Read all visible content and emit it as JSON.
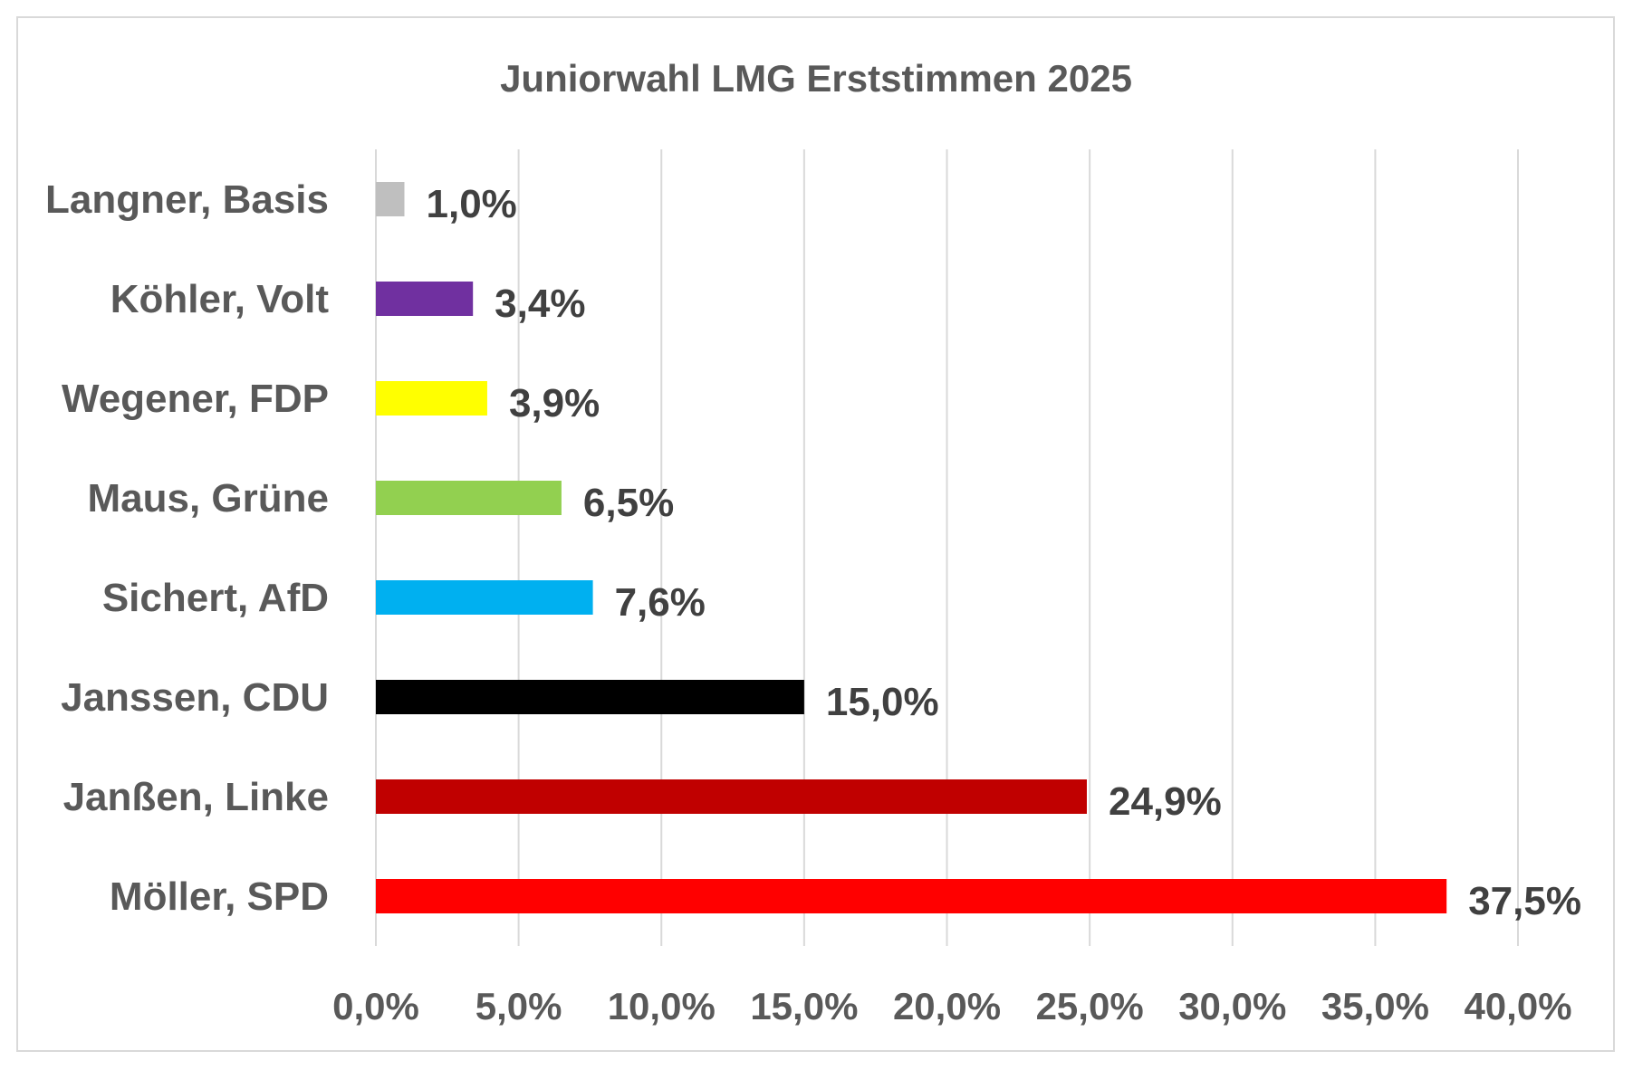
{
  "chart_data": {
    "type": "bar",
    "orientation": "horizontal",
    "title": "Juniorwahl LMG Erststimmen 2025",
    "xlabel": "",
    "ylabel": "",
    "categories": [
      "Langner, Basis",
      "Köhler, Volt",
      "Wegener, FDP",
      "Maus, Grüne",
      "Sichert, AfD",
      "Janssen, CDU",
      "Janßen, Linke",
      "Möller, SPD"
    ],
    "values": [
      1.0,
      3.4,
      3.9,
      6.5,
      7.6,
      15.0,
      24.9,
      37.5
    ],
    "data_labels": [
      "1,0%",
      "3,4%",
      "3,9%",
      "6,5%",
      "7,6%",
      "15,0%",
      "24,9%",
      "37,5%"
    ],
    "colors": [
      "#bfbfbf",
      "#7030a0",
      "#ffff00",
      "#92d050",
      "#00b0f0",
      "#000000",
      "#c00000",
      "#ff0000"
    ],
    "xlim": [
      0,
      40
    ],
    "xticks": [
      0,
      5,
      10,
      15,
      20,
      25,
      30,
      35,
      40
    ],
    "xtick_labels": [
      "0,0%",
      "5,0%",
      "10,0%",
      "15,0%",
      "20,0%",
      "25,0%",
      "30,0%",
      "35,0%",
      "40,0%"
    ],
    "grid": true,
    "legend": "none"
  }
}
